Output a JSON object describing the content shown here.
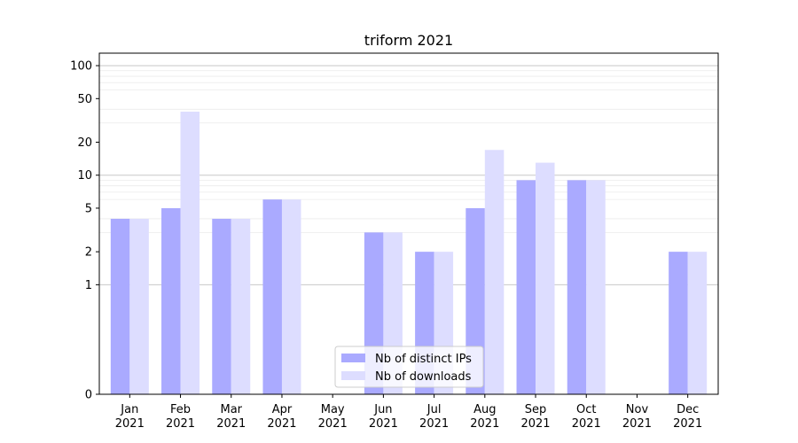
{
  "chart_data": {
    "type": "bar",
    "title": "triform 2021",
    "xlabel": "",
    "ylabel": "",
    "y_scale": "symlog",
    "ylim": [
      0,
      130
    ],
    "y_ticks": [
      0,
      1,
      2,
      5,
      10,
      20,
      50,
      100
    ],
    "y_tick_labels": [
      "0",
      "1",
      "2",
      "5",
      "10",
      "20",
      "50",
      "100"
    ],
    "categories": [
      "Jan\n2021",
      "Feb\n2021",
      "Mar\n2021",
      "Apr\n2021",
      "May\n2021",
      "Jun\n2021",
      "Jul\n2021",
      "Aug\n2021",
      "Sep\n2021",
      "Oct\n2021",
      "Nov\n2021",
      "Dec\n2021"
    ],
    "category_lines": [
      [
        "Jan",
        "2021"
      ],
      [
        "Feb",
        "2021"
      ],
      [
        "Mar",
        "2021"
      ],
      [
        "Apr",
        "2021"
      ],
      [
        "May",
        "2021"
      ],
      [
        "Jun",
        "2021"
      ],
      [
        "Jul",
        "2021"
      ],
      [
        "Aug",
        "2021"
      ],
      [
        "Sep",
        "2021"
      ],
      [
        "Oct",
        "2021"
      ],
      [
        "Nov",
        "2021"
      ],
      [
        "Dec",
        "2021"
      ]
    ],
    "series": [
      {
        "name": "Nb of distinct IPs",
        "color": "#aaaaff",
        "values": [
          4,
          5,
          4,
          6,
          0,
          3,
          2,
          5,
          9,
          9,
          0,
          2
        ]
      },
      {
        "name": "Nb of downloads",
        "color": "#ddddff",
        "values": [
          4,
          38,
          4,
          6,
          0,
          3,
          2,
          17,
          13,
          9,
          0,
          2
        ]
      }
    ],
    "grid": "y-major-and-minor",
    "legend_position": "lower-center"
  }
}
